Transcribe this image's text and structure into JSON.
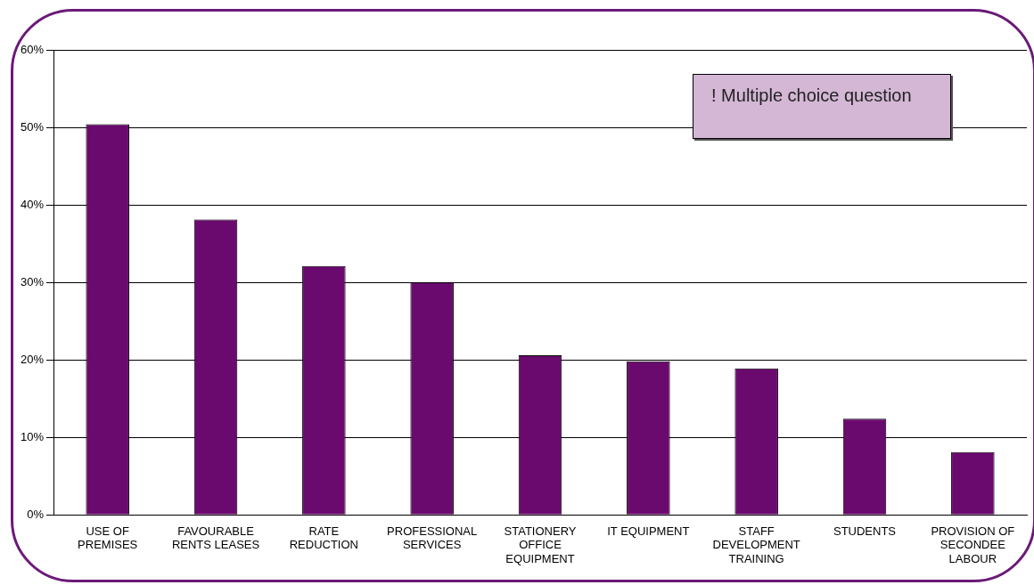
{
  "chart_data": {
    "type": "bar",
    "categories": [
      "USE OF PREMISES",
      "FAVOURABLE RENTS LEASES",
      "RATE REDUCTION",
      "PROFESSIONAL SERVICES",
      "STATIONERY OFFICE EQUIPMENT",
      "IT EQUIPMENT",
      "STAFF DEVELOPMENT TRAINING",
      "STUDENTS",
      "PROVISION OF SECONDEE LABOUR"
    ],
    "values": [
      50.4,
      38.1,
      32.1,
      30,
      20.6,
      19.8,
      18.9,
      12.4,
      8.1
    ],
    "color": "#6b0a6e",
    "ylim": [
      0,
      60
    ],
    "yticks": [
      {
        "value": 0,
        "label": "0%"
      },
      {
        "value": 10,
        "label": "10%"
      },
      {
        "value": 20,
        "label": "20%"
      },
      {
        "value": 30,
        "label": "30%"
      },
      {
        "value": 40,
        "label": "40%"
      },
      {
        "value": 50,
        "label": "50%"
      },
      {
        "value": 60,
        "label": "60%"
      }
    ],
    "grid": "y",
    "annotations": [
      "! Multiple choice question"
    ]
  }
}
